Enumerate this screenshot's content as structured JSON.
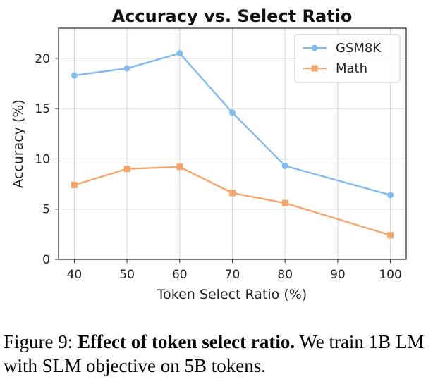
{
  "chart_data": {
    "type": "line",
    "title": "Accuracy vs. Select Ratio",
    "xlabel": "Token Select Ratio (%)",
    "ylabel": "Accuracy (%)",
    "x": [
      40,
      50,
      60,
      70,
      80,
      100
    ],
    "xticks": [
      40,
      50,
      60,
      70,
      80,
      90,
      100
    ],
    "xlim": [
      37,
      103
    ],
    "yticks": [
      0,
      5,
      10,
      15,
      20
    ],
    "ylim": [
      0,
      23
    ],
    "grid": true,
    "legend": "top-right",
    "series": [
      {
        "name": "GSM8K",
        "values": [
          18.3,
          19.0,
          20.5,
          14.6,
          9.3,
          6.4
        ],
        "color": "#82bcef",
        "marker": "circle"
      },
      {
        "name": "Math",
        "values": [
          7.4,
          9.0,
          9.2,
          6.6,
          5.6,
          2.4
        ],
        "color": "#f7a66b",
        "marker": "square"
      }
    ]
  },
  "caption": {
    "prefix": "Figure 9: ",
    "bold": "Effect of token select ratio.",
    "rest": " We train 1B LM with SLM objective on 5B tokens."
  }
}
